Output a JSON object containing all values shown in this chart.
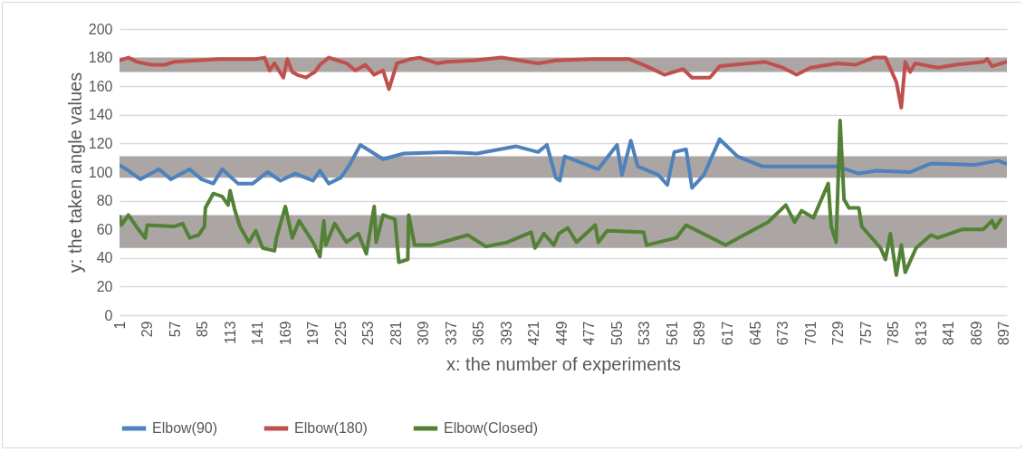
{
  "chart_data": {
    "type": "line",
    "xlabel": "x: the number of experiments",
    "ylabel": "y: the taken angle values",
    "xlim": [
      1,
      900
    ],
    "xticks": [
      1,
      29,
      57,
      85,
      113,
      141,
      169,
      197,
      225,
      253,
      281,
      309,
      337,
      365,
      393,
      421,
      449,
      477,
      505,
      533,
      561,
      589,
      617,
      645,
      673,
      701,
      729,
      757,
      785,
      813,
      841,
      869,
      897
    ],
    "ylim": [
      0,
      200
    ],
    "yticks": [
      0,
      20,
      40,
      60,
      80,
      100,
      120,
      140,
      160,
      180,
      200
    ],
    "grid": "y",
    "legend": "bottom",
    "line_style": "solid",
    "bands": [
      {
        "axis": "y",
        "from": 170,
        "to": 180,
        "color": "#aba6a4"
      },
      {
        "axis": "y",
        "from": 96,
        "to": 111,
        "color": "#aba6a4"
      },
      {
        "axis": "y",
        "from": 47,
        "to": 70,
        "color": "#aba6a4"
      }
    ],
    "series": [
      {
        "name": "Elbow(90)",
        "color": "#4f81bd",
        "x": [
          1,
          10,
          22,
          41,
          53,
          72,
          84,
          96,
          105,
          121,
          136,
          151,
          164,
          179,
          197,
          204,
          213,
          225,
          234,
          245,
          268,
          289,
          332,
          363,
          403,
          425,
          434,
          443,
          447,
          452,
          486,
          505,
          510,
          519,
          526,
          547,
          556,
          563,
          575,
          581,
          593,
          609,
          615,
          627,
          652,
          701,
          728,
          750,
          768,
          802,
          823,
          867,
          891,
          899
        ],
        "values": [
          105,
          101,
          95,
          102,
          95,
          102,
          95,
          92,
          102,
          92,
          92,
          100,
          94,
          99,
          94,
          101,
          92,
          96,
          105,
          119,
          109,
          113,
          114,
          113,
          118,
          114,
          119,
          96,
          94,
          111,
          102,
          119,
          98,
          122,
          104,
          98,
          91,
          114,
          116,
          89,
          98,
          123,
          119,
          111,
          104,
          104,
          104,
          99,
          101,
          100,
          106,
          105,
          108,
          106
        ]
      },
      {
        "name": "Elbow(180)",
        "color": "#c0504d",
        "x": [
          1,
          10,
          19,
          33,
          47,
          56,
          102,
          139,
          148,
          153,
          158,
          167,
          171,
          176,
          181,
          190,
          194,
          199,
          204,
          213,
          222,
          231,
          240,
          250,
          259,
          268,
          274,
          282,
          296,
          305,
          323,
          332,
          360,
          388,
          425,
          443,
          480,
          517,
          535,
          553,
          572,
          581,
          599,
          609,
          655,
          673,
          687,
          701,
          728,
          747,
          765,
          777,
          788,
          793,
          797,
          802,
          807,
          830,
          848,
          876,
          880,
          885,
          899
        ],
        "values": [
          178,
          180,
          177,
          175,
          175,
          177,
          179,
          179,
          180,
          171,
          176,
          166,
          179,
          170,
          168,
          166,
          168,
          170,
          175,
          180,
          178,
          176,
          171,
          175,
          168,
          171,
          158,
          176,
          179,
          180,
          176,
          177,
          178,
          180,
          176,
          178,
          179,
          179,
          174,
          168,
          172,
          166,
          166,
          174,
          177,
          173,
          168,
          173,
          176,
          175,
          180,
          180,
          163,
          145,
          177,
          170,
          176,
          173,
          175,
          177,
          179,
          174,
          177
        ]
      },
      {
        "name": "Elbow(Closed)",
        "color": "#538135",
        "x": [
          1,
          3,
          10,
          19,
          27,
          29,
          56,
          65,
          72,
          81,
          87,
          88,
          96,
          105,
          111,
          113,
          118,
          123,
          132,
          139,
          146,
          158,
          160,
          169,
          176,
          183,
          197,
          204,
          208,
          210,
          219,
          231,
          243,
          251,
          259,
          261,
          268,
          280,
          284,
          293,
          294,
          300,
          317,
          354,
          372,
          394,
          418,
          422,
          431,
          441,
          446,
          455,
          464,
          483,
          486,
          495,
          532,
          535,
          565,
          575,
          615,
          639,
          658,
          676,
          685,
          692,
          704,
          719,
          722,
          727,
          731,
          735,
          740,
          750,
          753,
          772,
          777,
          782,
          788,
          793,
          797,
          808,
          823,
          830,
          855,
          876,
          885,
          888,
          894
        ],
        "values": [
          69,
          63,
          70,
          61,
          54,
          63,
          62,
          64,
          54,
          56,
          62,
          75,
          85,
          83,
          77,
          87,
          73,
          62,
          51,
          59,
          47,
          45,
          54,
          76,
          54,
          66,
          51,
          41,
          66,
          49,
          64,
          51,
          57,
          43,
          76,
          51,
          70,
          67,
          37,
          39,
          70,
          49,
          49,
          56,
          48,
          51,
          58,
          47,
          57,
          49,
          57,
          61,
          51,
          63,
          51,
          59,
          58,
          49,
          54,
          63,
          49,
          58,
          65,
          77,
          65,
          73,
          68,
          92,
          62,
          51,
          136,
          81,
          75,
          75,
          62,
          47,
          39,
          57,
          28,
          49,
          30,
          47,
          56,
          54,
          60,
          60,
          66,
          61,
          67
        ]
      }
    ]
  }
}
